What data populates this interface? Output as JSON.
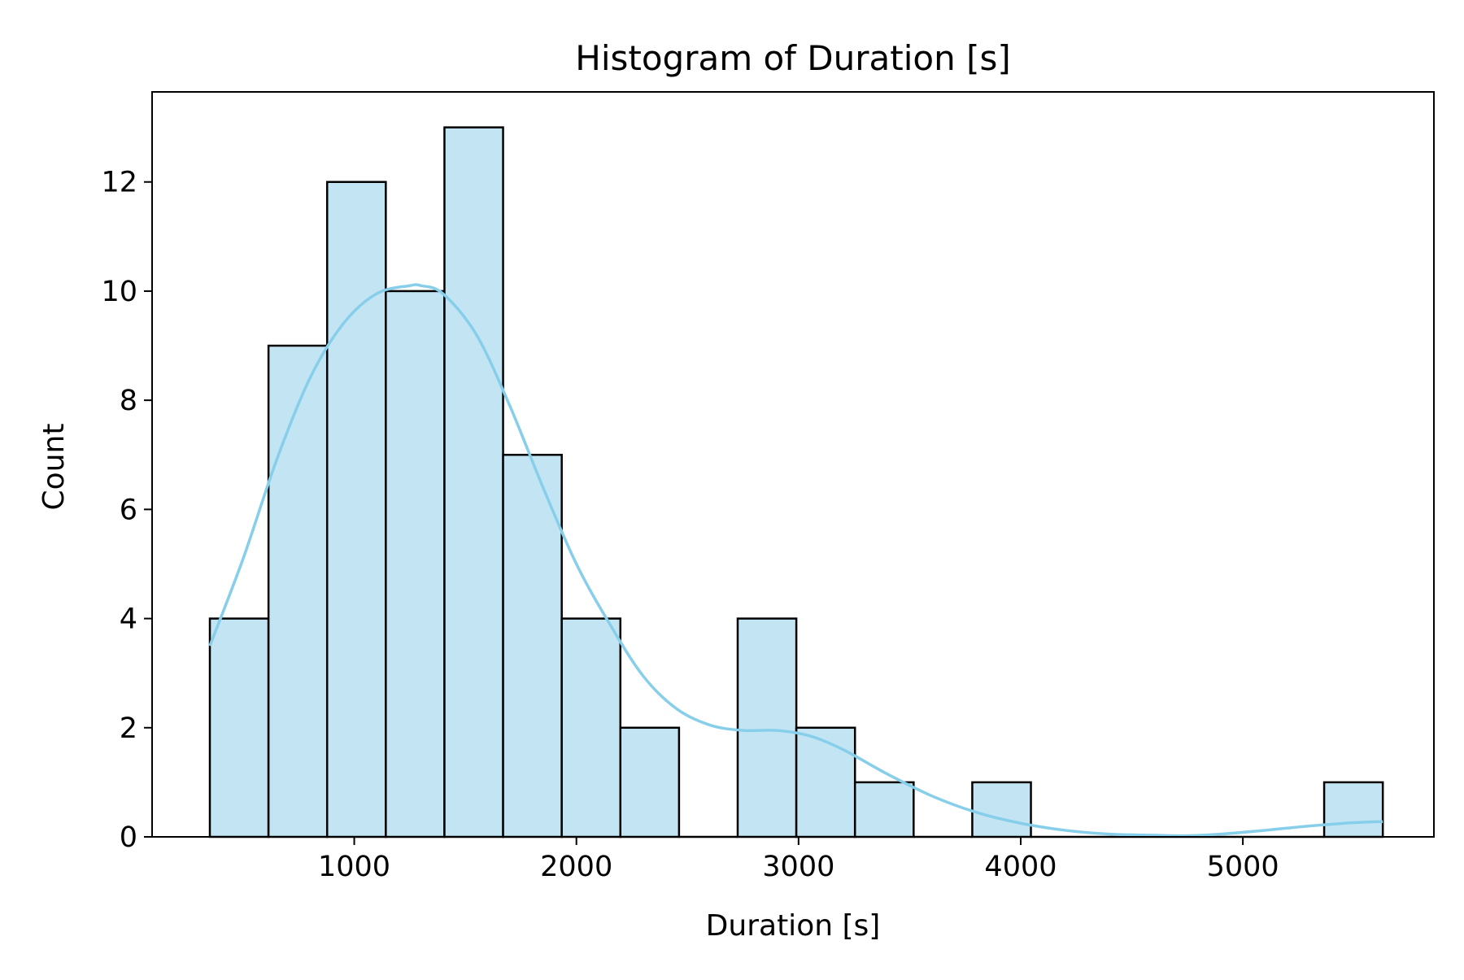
{
  "chart_data": {
    "type": "bar",
    "title": "Histogram of Duration [s]",
    "xlabel": "Duration [s]",
    "ylabel": "Count",
    "xlim": [
      90,
      5860
    ],
    "ylim": [
      0,
      13.65
    ],
    "xticks": [
      1000,
      2000,
      3000,
      4000,
      5000
    ],
    "xtick_labels": [
      "1000",
      "2000",
      "3000",
      "4000",
      "5000"
    ],
    "yticks": [
      0,
      2,
      4,
      6,
      8,
      10,
      12
    ],
    "ytick_labels": [
      "0",
      "2",
      "4",
      "6",
      "8",
      "10",
      "12"
    ],
    "bin_edges": [
      350,
      614,
      878,
      1142,
      1406,
      1670,
      1934,
      2198,
      2462,
      2726,
      2990,
      3254,
      3518,
      3782,
      4046,
      4310,
      4574,
      4838,
      5102,
      5366,
      5630
    ],
    "values": [
      4,
      9,
      12,
      10,
      13,
      7,
      4,
      2,
      0,
      4,
      2,
      1,
      0,
      1,
      0,
      0,
      0,
      0,
      0,
      1
    ],
    "kde": {
      "x": [
        350,
        500,
        650,
        800,
        950,
        1100,
        1250,
        1300,
        1400,
        1550,
        1700,
        1850,
        2000,
        2150,
        2300,
        2450,
        2600,
        2750,
        2900,
        3050,
        3200,
        3400,
        3600,
        3800,
        4000,
        4200,
        4400,
        4600,
        4750,
        4900,
        5100,
        5300,
        5500,
        5630
      ],
      "y": [
        3.5,
        5.1,
        6.9,
        8.4,
        9.4,
        9.95,
        10.1,
        10.1,
        9.95,
        9.2,
        7.9,
        6.4,
        5.0,
        3.9,
        2.95,
        2.35,
        2.05,
        1.95,
        1.95,
        1.85,
        1.6,
        1.15,
        0.75,
        0.45,
        0.25,
        0.12,
        0.05,
        0.03,
        0.02,
        0.05,
        0.12,
        0.2,
        0.26,
        0.28
      ]
    },
    "grid": false,
    "legend": "none",
    "colors": {
      "bar_fill": "#c3e5f3",
      "bar_edge": "#000000",
      "kde_line": "#87ceeb",
      "axes": "#000000"
    }
  }
}
